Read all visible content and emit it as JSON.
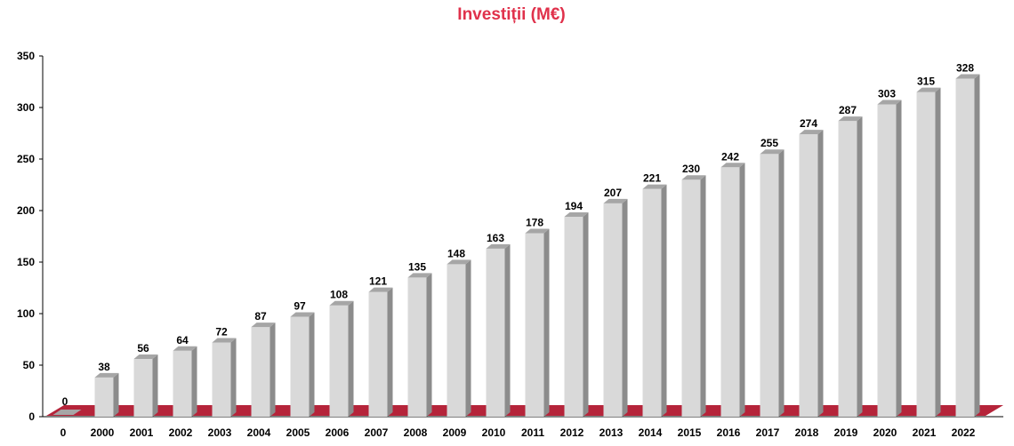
{
  "chart_data": {
    "type": "bar",
    "title": "Investiții (M€)",
    "xlabel": "",
    "ylabel": "",
    "categories": [
      "0",
      "2000",
      "2001",
      "2002",
      "2003",
      "2004",
      "2005",
      "2006",
      "2007",
      "2008",
      "2009",
      "2010",
      "2011",
      "2012",
      "2013",
      "2014",
      "2015",
      "2016",
      "2017",
      "2018",
      "2019",
      "2020",
      "2021",
      "2022"
    ],
    "values": [
      0,
      38,
      56,
      64,
      72,
      87,
      97,
      108,
      121,
      135,
      148,
      163,
      178,
      194,
      207,
      221,
      230,
      242,
      255,
      274,
      287,
      303,
      315,
      328
    ],
    "ylim": [
      0,
      350
    ],
    "yticks": [
      0,
      50,
      100,
      150,
      200,
      250,
      300,
      350
    ],
    "grid": false,
    "legend": "none",
    "style": "3d-column",
    "colors": {
      "bar_front": "#d9d9d9",
      "bar_side": "#8c8c8c",
      "bar_top": "#a6a6a6",
      "floor": "#b5243a",
      "title": "#e0314b"
    }
  }
}
